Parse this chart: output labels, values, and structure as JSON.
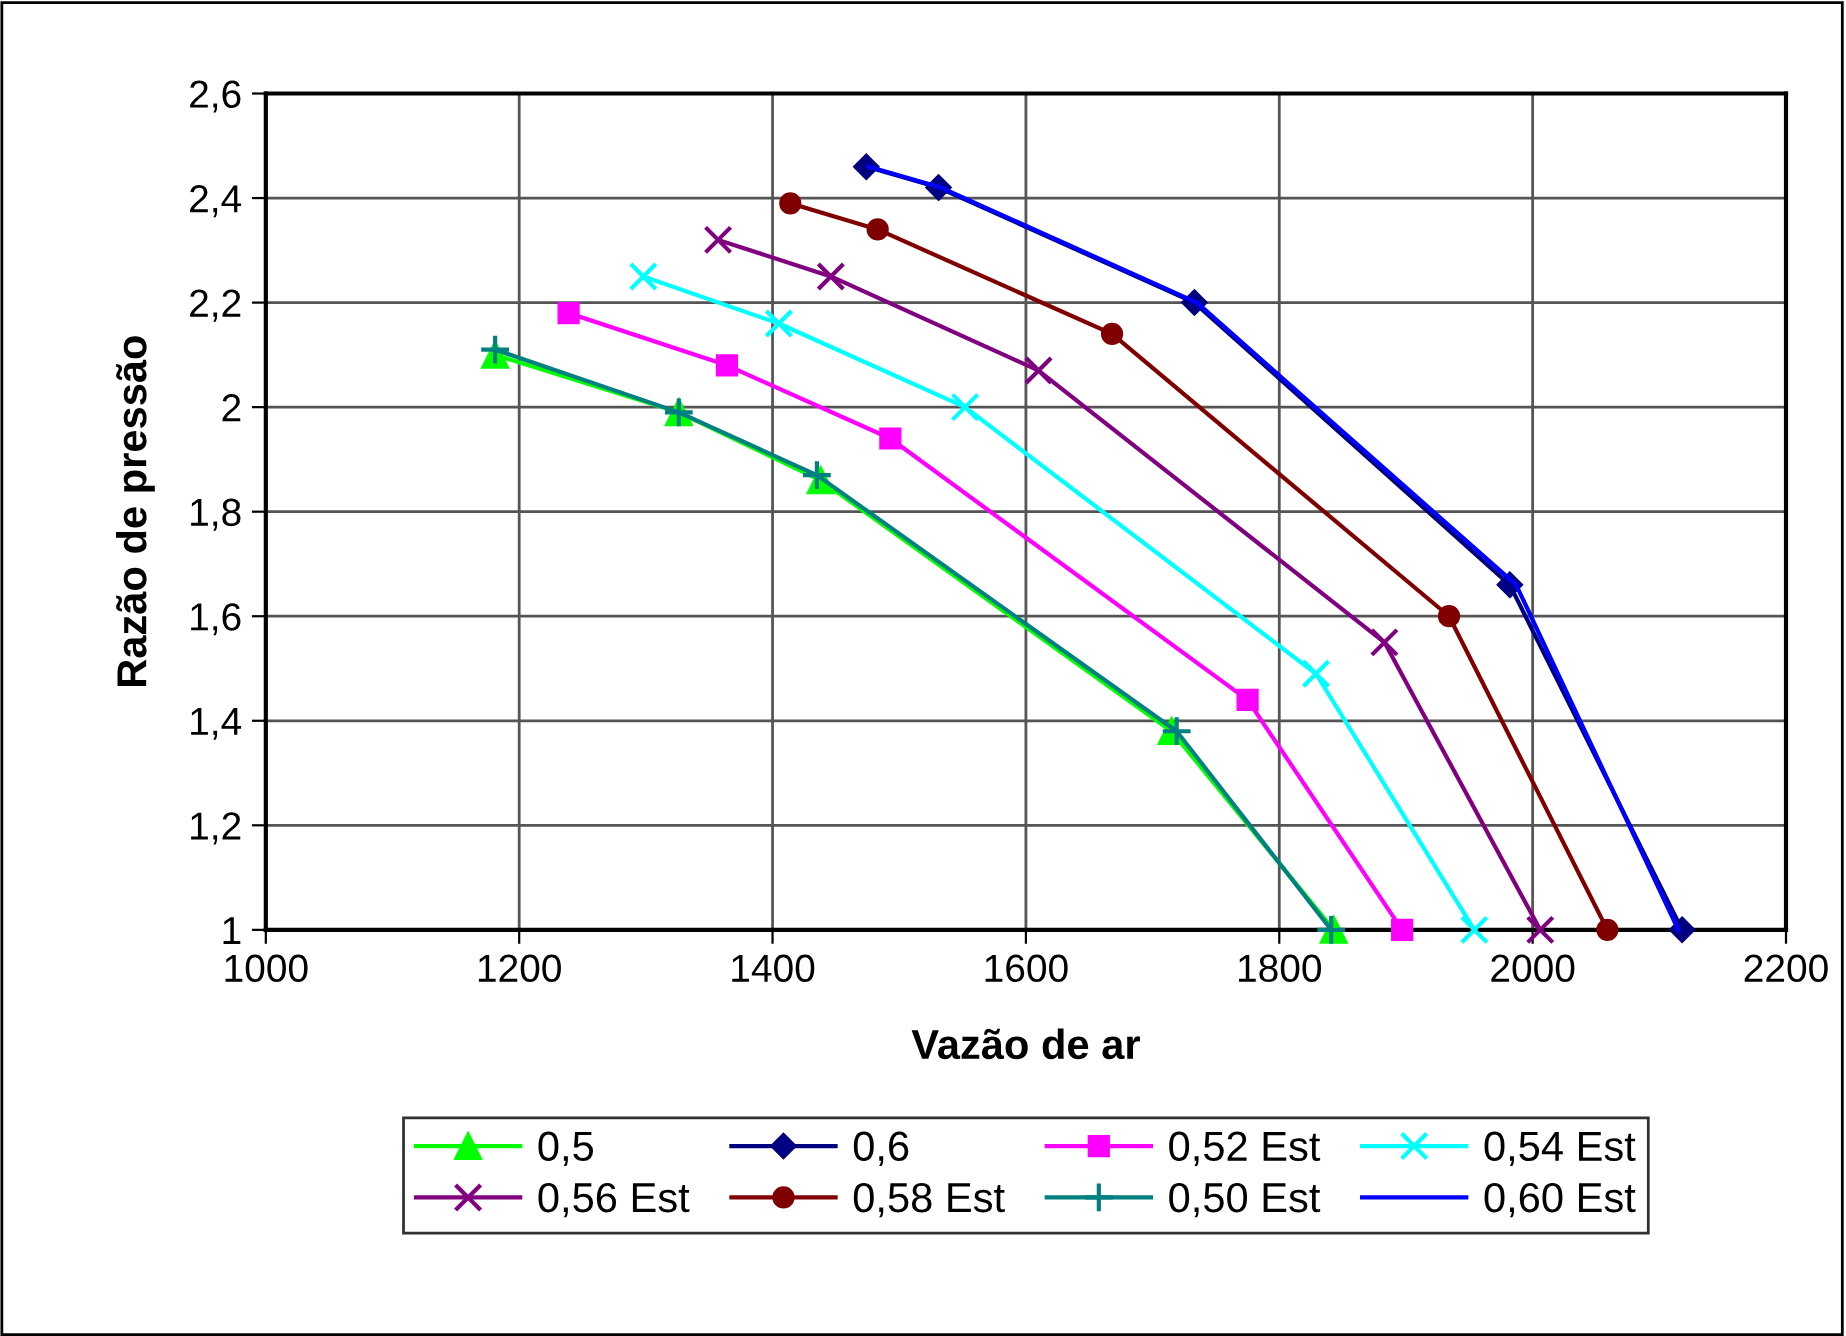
{
  "chart_data": {
    "type": "line",
    "xlabel": "Vazão de ar",
    "ylabel": "Razão de pressão",
    "xlim": [
      1000,
      2200
    ],
    "xticks": [
      1000,
      1200,
      1400,
      1600,
      1800,
      2000,
      2200
    ],
    "ylim": [
      1,
      2.6
    ],
    "yticks": [
      {
        "value": 1,
        "label": "1"
      },
      {
        "value": 1.2,
        "label": "1,2"
      },
      {
        "value": 1.4,
        "label": "1,4"
      },
      {
        "value": 1.6,
        "label": "1,6"
      },
      {
        "value": 1.8,
        "label": "1,8"
      },
      {
        "value": 2,
        "label": "2"
      },
      {
        "value": 2.2,
        "label": "2,2"
      },
      {
        "value": 2.4,
        "label": "2,4"
      },
      {
        "value": 2.6,
        "label": "2,6"
      }
    ],
    "grid": true,
    "legend": "bottom",
    "series": [
      {
        "name": "0,5",
        "color": "#00ff00",
        "marker": "triangle",
        "x": [
          1181,
          1326,
          1438,
          1715,
          1843
        ],
        "values": [
          2.1,
          1.99,
          1.86,
          1.38,
          1.0
        ]
      },
      {
        "name": "0,6",
        "color": "#000080",
        "marker": "diamond",
        "x": [
          1474,
          1531,
          1733,
          1982,
          2118
        ],
        "values": [
          2.46,
          2.42,
          2.2,
          1.66,
          1.0
        ]
      },
      {
        "name": "0,52 Est",
        "color": "#ff00ff",
        "marker": "square",
        "x": [
          1239,
          1364,
          1493,
          1775,
          1897
        ],
        "values": [
          2.18,
          2.08,
          1.94,
          1.44,
          1.0
        ]
      },
      {
        "name": "0,54 Est",
        "color": "#00ffff",
        "marker": "cross",
        "x": [
          1298,
          1405,
          1552,
          1829,
          1954
        ],
        "values": [
          2.25,
          2.16,
          2.0,
          1.49,
          1.0
        ]
      },
      {
        "name": "0,56 Est",
        "color": "#800080",
        "marker": "cross",
        "x": [
          1357,
          1446,
          1610,
          1883,
          2006
        ],
        "values": [
          2.32,
          2.25,
          2.07,
          1.55,
          1.0
        ]
      },
      {
        "name": "0,58 Est",
        "color": "#800000",
        "marker": "circle",
        "x": [
          1414,
          1483,
          1668,
          1934,
          2059
        ],
        "values": [
          2.39,
          2.34,
          2.14,
          1.6,
          1.0
        ]
      },
      {
        "name": "0,50 Est",
        "color": "#008080",
        "marker": "plus",
        "x": [
          1181,
          1326,
          1435,
          1719,
          1841
        ],
        "values": [
          2.11,
          1.99,
          1.87,
          1.38,
          1.0
        ]
      },
      {
        "name": "0,60 Est",
        "color": "#0000ff",
        "marker": "none",
        "x": [
          1476,
          1533,
          1735,
          1987,
          2115
        ],
        "values": [
          2.46,
          2.42,
          2.2,
          1.66,
          1.0
        ]
      }
    ]
  }
}
